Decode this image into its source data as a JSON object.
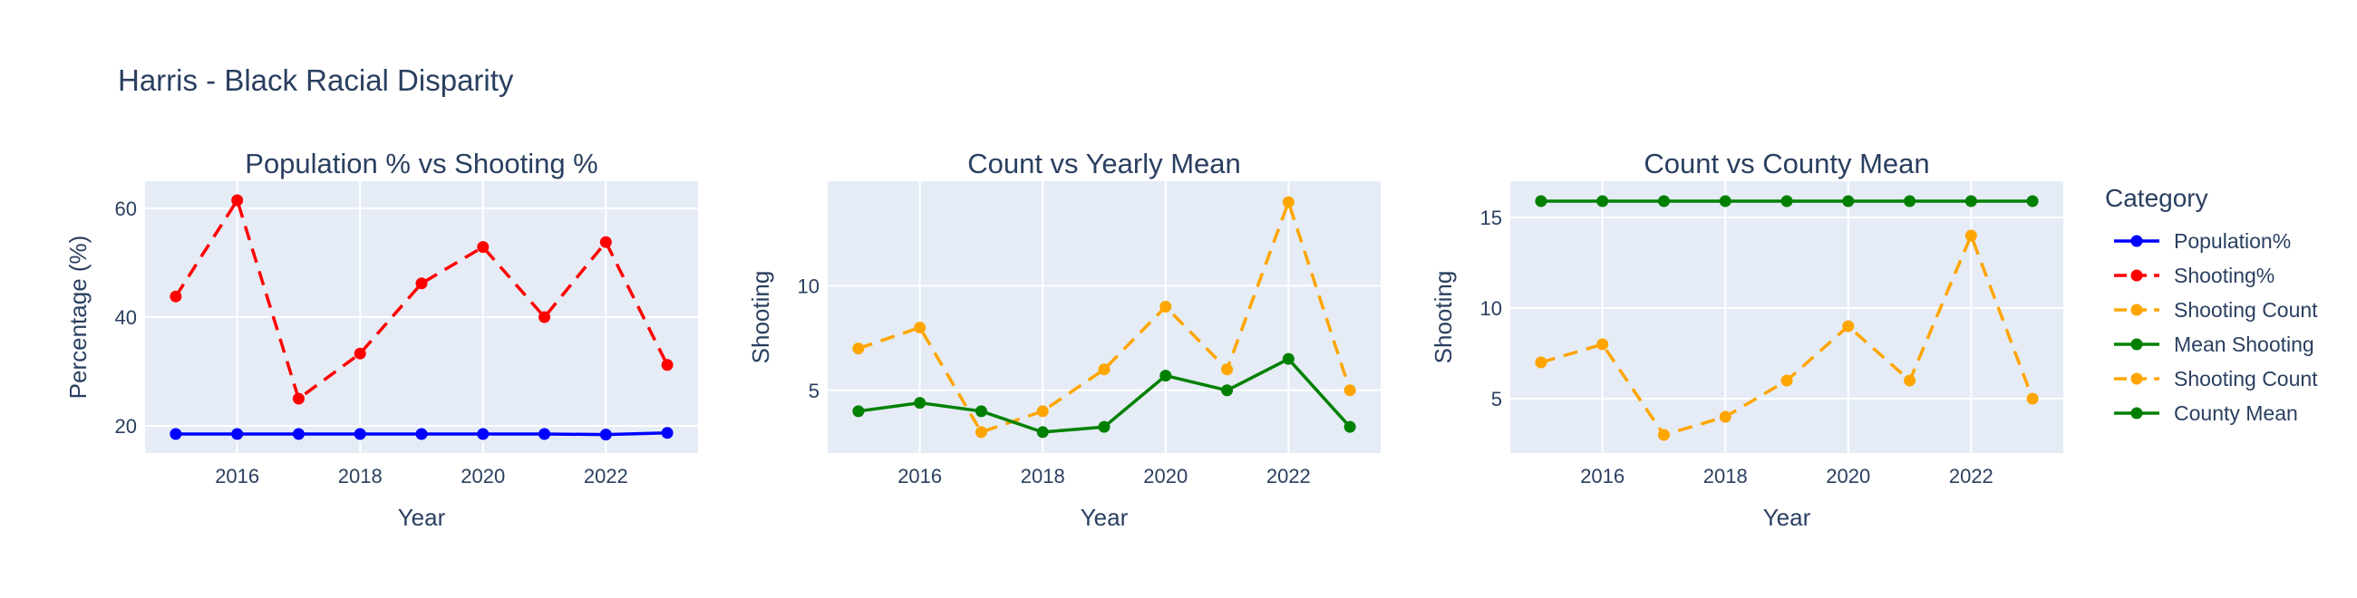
{
  "figure": {
    "title": "Harris - Black Racial Disparity"
  },
  "legend": {
    "title": "Category",
    "placement": "right",
    "items": [
      {
        "label": "Population%",
        "color": "#0000ff",
        "dash": "solid"
      },
      {
        "label": "Shooting%",
        "color": "#ff0000",
        "dash": "dash"
      },
      {
        "label": "Shooting Count",
        "color": "#ffa500",
        "dash": "dash"
      },
      {
        "label": "Mean Shooting",
        "color": "#008000",
        "dash": "solid"
      },
      {
        "label": "Shooting Count",
        "color": "#ffa500",
        "dash": "dash"
      },
      {
        "label": "County Mean",
        "color": "#008000",
        "dash": "solid"
      }
    ]
  },
  "chart_data": [
    {
      "type": "line",
      "title": "Population % vs Shooting %",
      "xlabel": "Year",
      "ylabel": "Percentage (%)",
      "xlim": [
        2014.5,
        2023.5
      ],
      "ylim": [
        15,
        65
      ],
      "xticks": [
        2016,
        2018,
        2020,
        2022
      ],
      "yticks": [
        20,
        40,
        60
      ],
      "grid": true,
      "series": [
        {
          "name": "Population%",
          "color": "#0000ff",
          "dash": "solid",
          "x": [
            2015,
            2016,
            2017,
            2018,
            2019,
            2020,
            2021,
            2022,
            2023
          ],
          "y": [
            18.5,
            18.5,
            18.5,
            18.5,
            18.5,
            18.5,
            18.5,
            18.4,
            18.7
          ]
        },
        {
          "name": "Shooting%",
          "color": "#ff0000",
          "dash": "dash",
          "x": [
            2015,
            2016,
            2017,
            2018,
            2019,
            2020,
            2021,
            2022,
            2023
          ],
          "y": [
            43.8,
            61.5,
            25,
            33.3,
            46.2,
            52.9,
            40,
            53.8,
            31.2
          ]
        }
      ]
    },
    {
      "type": "line",
      "title": "Count vs Yearly Mean",
      "xlabel": "Year",
      "ylabel": "Shooting",
      "xlim": [
        2014.5,
        2023.5
      ],
      "ylim": [
        2,
        15
      ],
      "xticks": [
        2016,
        2018,
        2020,
        2022
      ],
      "yticks": [
        5,
        10
      ],
      "grid": true,
      "series": [
        {
          "name": "Shooting Count",
          "color": "#ffa500",
          "dash": "dash",
          "x": [
            2015,
            2016,
            2017,
            2018,
            2019,
            2020,
            2021,
            2022,
            2023
          ],
          "y": [
            7,
            8,
            3,
            4,
            6,
            9,
            6,
            14,
            5
          ]
        },
        {
          "name": "Mean Shooting",
          "color": "#008000",
          "dash": "solid",
          "x": [
            2015,
            2016,
            2017,
            2018,
            2019,
            2020,
            2021,
            2022,
            2023
          ],
          "y": [
            4,
            4.4,
            4,
            3,
            3.25,
            5.7,
            5,
            6.5,
            3.25
          ]
        }
      ]
    },
    {
      "type": "line",
      "title": "Count vs County Mean",
      "xlabel": "Year",
      "ylabel": "Shooting",
      "xlim": [
        2014.5,
        2023.5
      ],
      "ylim": [
        2,
        17
      ],
      "xticks": [
        2016,
        2018,
        2020,
        2022
      ],
      "yticks": [
        5,
        10,
        15
      ],
      "grid": true,
      "series": [
        {
          "name": "Shooting Count",
          "color": "#ffa500",
          "dash": "dash",
          "x": [
            2015,
            2016,
            2017,
            2018,
            2019,
            2020,
            2021,
            2022,
            2023
          ],
          "y": [
            7,
            8,
            3,
            4,
            6,
            9,
            6,
            14,
            5
          ]
        },
        {
          "name": "County Mean",
          "color": "#008000",
          "dash": "solid",
          "x": [
            2015,
            2016,
            2017,
            2018,
            2019,
            2020,
            2021,
            2022,
            2023
          ],
          "y": [
            15.9,
            15.9,
            15.9,
            15.9,
            15.9,
            15.9,
            15.9,
            15.9,
            15.9
          ]
        }
      ]
    }
  ]
}
